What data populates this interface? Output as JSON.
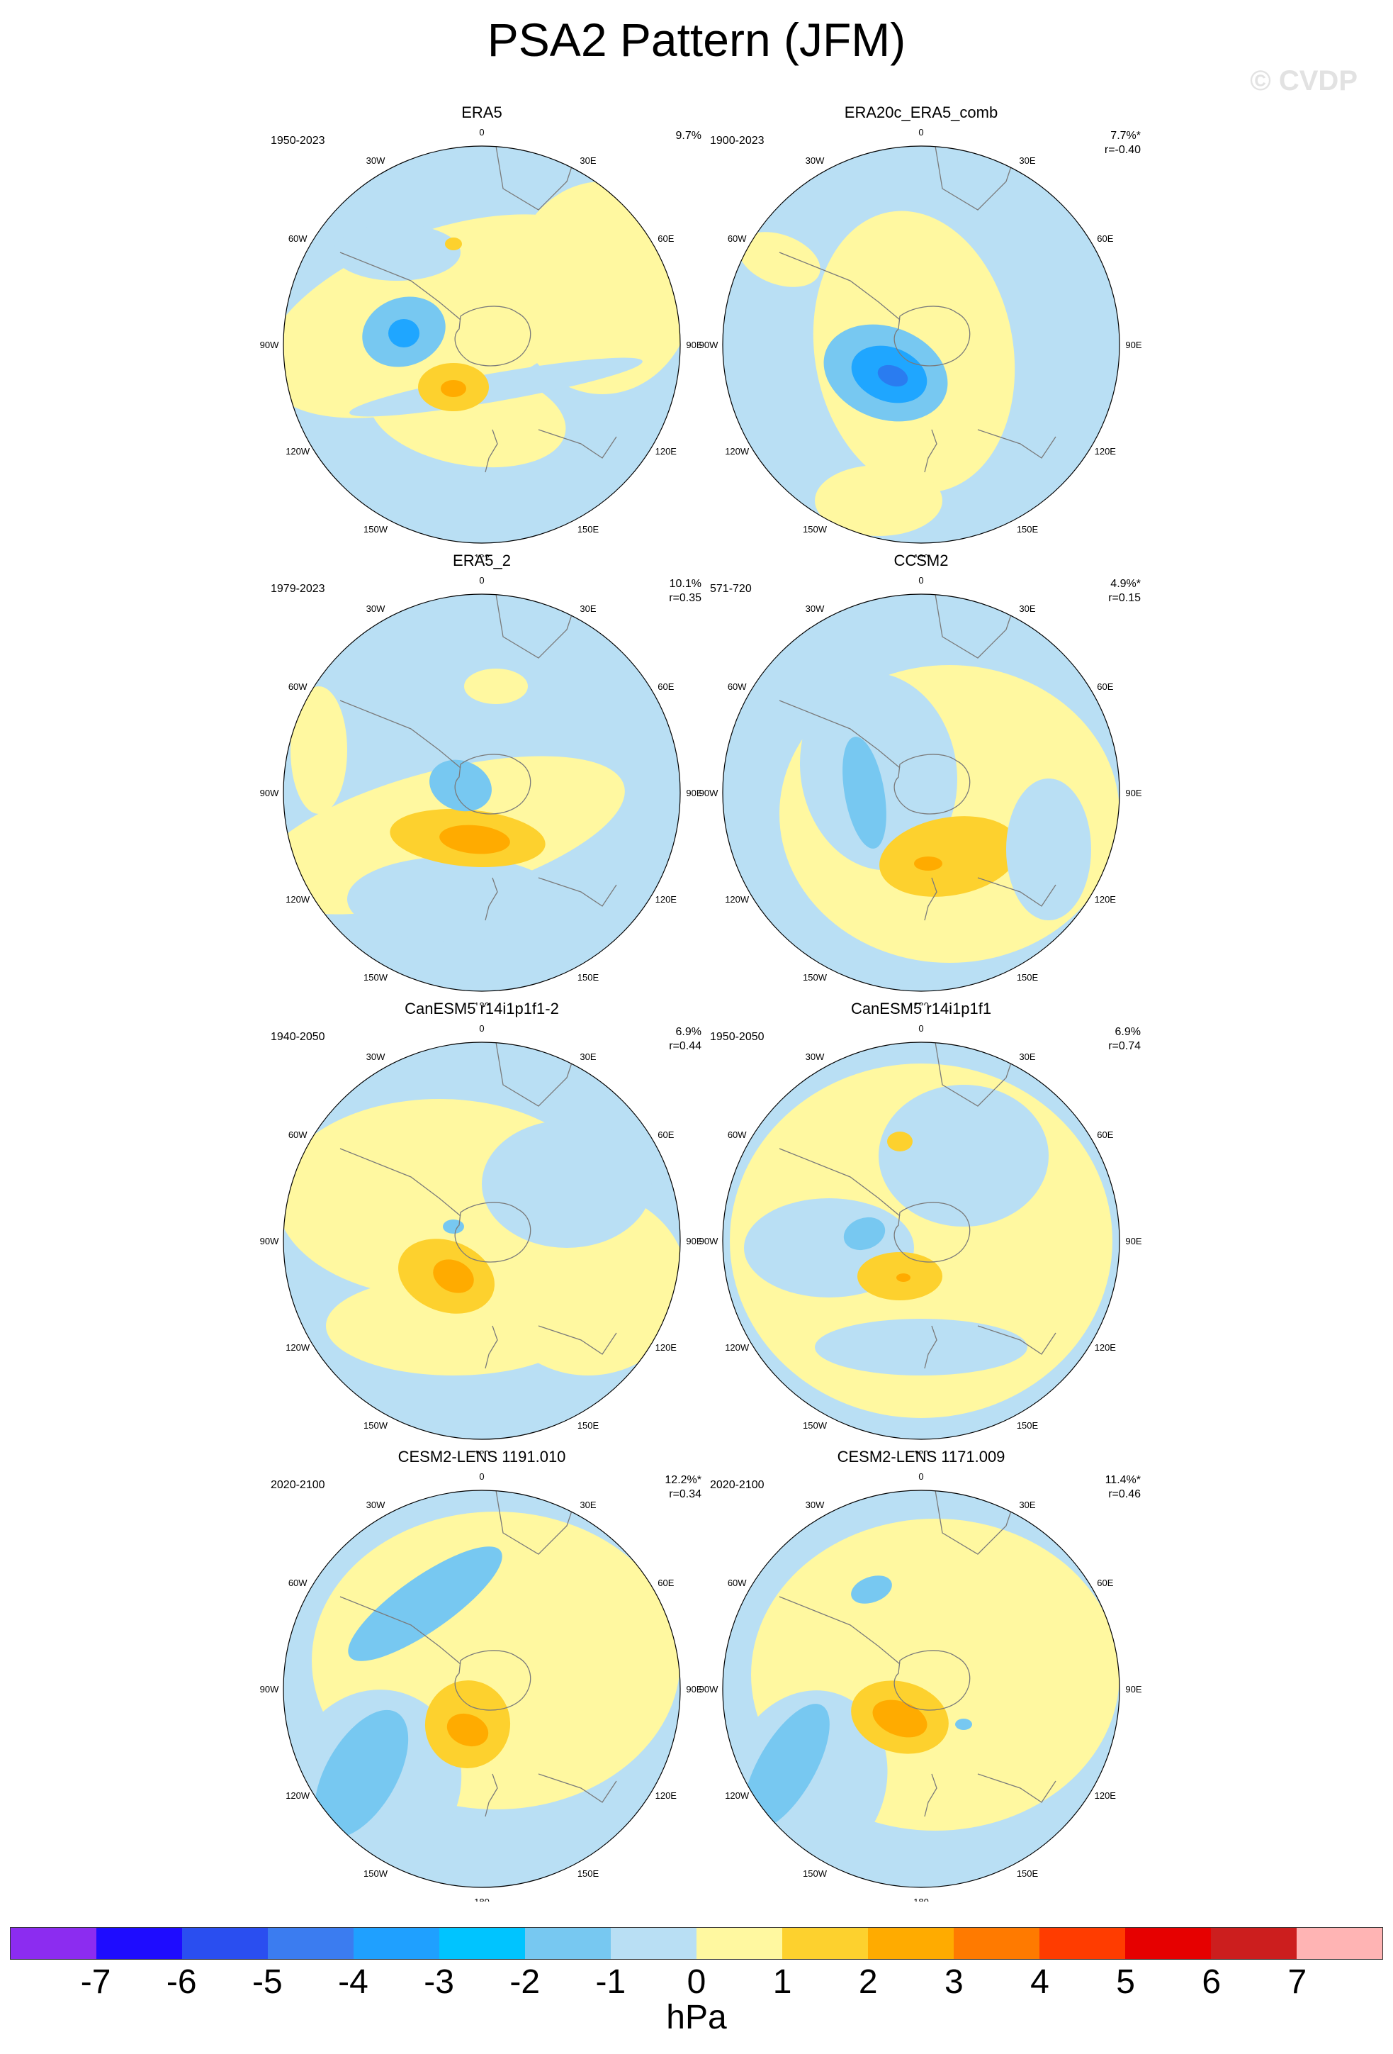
{
  "page": {
    "title": "PSA2 Pattern (JFM)",
    "watermark": "© CVDP"
  },
  "lon_labels": [
    "0",
    "30E",
    "60E",
    "90E",
    "120E",
    "150E",
    "180",
    "150W",
    "120W",
    "90W",
    "60W",
    "30W"
  ],
  "colors": {
    "ocean_base_neg": "#b9dff4",
    "pos1": "#fff8a0",
    "pos2": "#fdd12e",
    "pos3": "#ffab00",
    "neg2": "#77c8f1",
    "neg3": "#1fa6ff",
    "neg4": "#1fa6ff",
    "coast": "#7a7a7a"
  },
  "panels": [
    {
      "title": "ERA5",
      "period": "1950-2023",
      "pct": "9.7%",
      "r": ""
    },
    {
      "title": "ERA20c_ERA5_comb",
      "period": "1900-2023",
      "pct": "7.7%*",
      "r": "r=-0.40"
    },
    {
      "title": "ERA5_2",
      "period": "1979-2023",
      "pct": "10.1%",
      "r": "r=0.35"
    },
    {
      "title": "CCSM2",
      "period": "571-720",
      "pct": "4.9%*",
      "r": "r=0.15"
    },
    {
      "title": "CanESM5 r14i1p1f1-2",
      "period": "1940-2050",
      "pct": "6.9%",
      "r": "r=0.44"
    },
    {
      "title": "CanESM5 r14i1p1f1",
      "period": "1950-2050",
      "pct": "6.9%",
      "r": "r=0.74"
    },
    {
      "title": "CESM2-LENS 1191.010",
      "period": "2020-2100",
      "pct": "12.2%*",
      "r": "r=0.34"
    },
    {
      "title": "CESM2-LENS 1171.009",
      "period": "2020-2100",
      "pct": "11.4%*",
      "r": "r=0.46"
    }
  ],
  "colorbar": {
    "colors": [
      "#8c2cf0",
      "#1e0cff",
      "#2a4ef0",
      "#3b7cf0",
      "#1fa0ff",
      "#00c4ff",
      "#77c8f1",
      "#b9dff4",
      "#fff8a0",
      "#fdd12e",
      "#ffab00",
      "#ff7a00",
      "#ff3c00",
      "#e60000",
      "#cc1e1e",
      "#ffb4b4"
    ],
    "ticks": [
      "-7",
      "-6",
      "-5",
      "-4",
      "-3",
      "-2",
      "-1",
      "0",
      "1",
      "2",
      "3",
      "4",
      "5",
      "6",
      "7"
    ],
    "unit": "hPa"
  }
}
